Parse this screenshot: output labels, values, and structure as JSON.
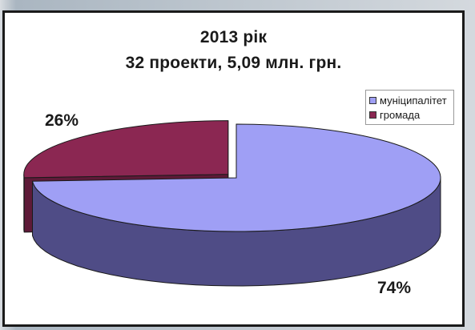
{
  "chart_data": {
    "type": "pie",
    "title": "2013 рік",
    "subtitle": "32 проекти, 5,09 млн. грн.",
    "categories": [
      "муніципалітет",
      "громада"
    ],
    "values": [
      74,
      26
    ],
    "data_labels": [
      "74%",
      "26%"
    ],
    "colors": {
      "top": [
        "#9f9ff5",
        "#8b2752"
      ],
      "side": [
        "#4f4c86",
        "#5e1a38"
      ]
    },
    "exploded": "громада",
    "three_d": true,
    "legend_position": "top-right"
  }
}
